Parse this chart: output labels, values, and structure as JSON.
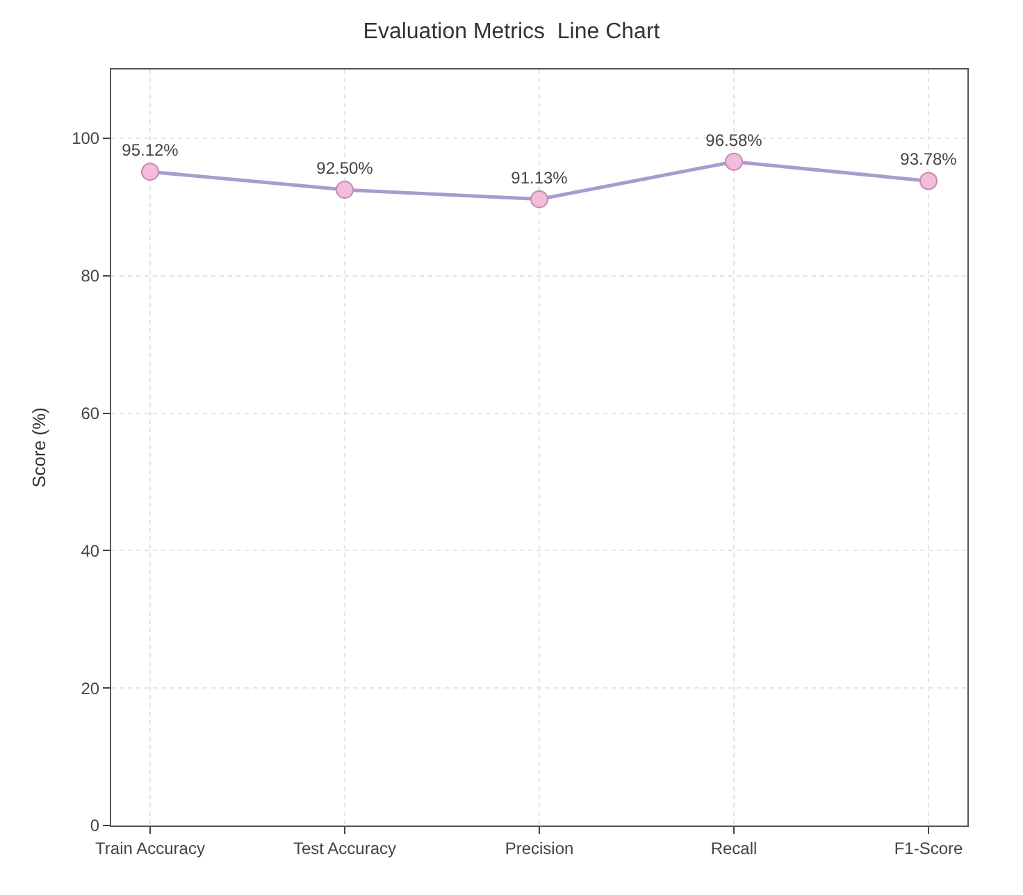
{
  "chart_data": {
    "type": "line",
    "title": "Evaluation Metrics  Line Chart",
    "ylabel": "Score (%)",
    "categories": [
      "Train Accuracy",
      "Test Accuracy",
      "Precision",
      "Recall",
      "F1-Score"
    ],
    "series": [
      {
        "color": "#a99bd0",
        "values": [
          95.12,
          92.5,
          91.13,
          96.58,
          93.78
        ],
        "value_labels": [
          "95.12%",
          "92.50%",
          "91.13%",
          "96.58%",
          "93.78%"
        ]
      }
    ],
    "ylim": [
      0,
      110
    ],
    "yticks": [
      0,
      20,
      40,
      60,
      80,
      100
    ],
    "grid": true,
    "marker": "circle",
    "line_style": "solid"
  }
}
